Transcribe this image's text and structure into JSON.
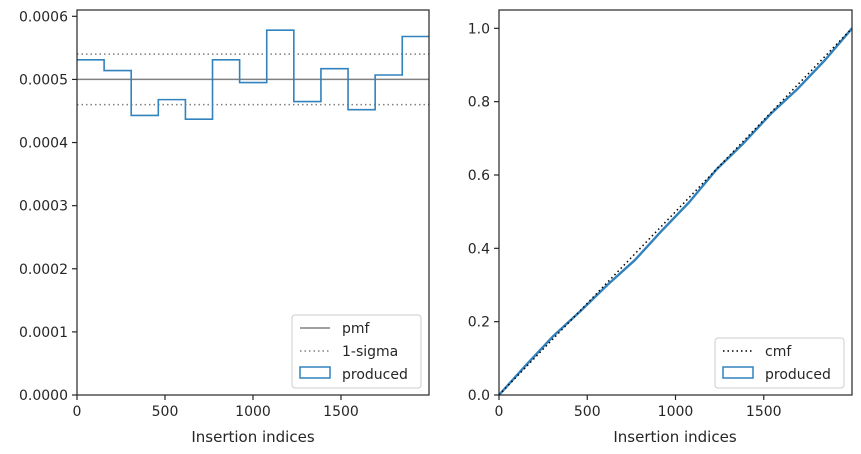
{
  "colors": {
    "produced": "#3182bd",
    "pmf": "#808080",
    "sigma": "#808080",
    "cmf": "#000000",
    "axes": "#262626"
  },
  "chart_data": [
    {
      "type": "line",
      "subtype": "step-histogram",
      "xlabel": "Insertion indices",
      "ylabel": "",
      "xlim": [
        0,
        2000
      ],
      "ylim": [
        0,
        0.00061
      ],
      "xticks": [
        0,
        500,
        1000,
        1500
      ],
      "xtick_labels": [
        "0",
        "500",
        "1000",
        "1500"
      ],
      "yticks": [
        0,
        0.0001,
        0.0002,
        0.0003,
        0.0004,
        0.0005,
        0.0006
      ],
      "ytick_labels": [
        "0.0000",
        "0.0001",
        "0.0002",
        "0.0003",
        "0.0004",
        "0.0005",
        "0.0006"
      ],
      "bin_edges": [
        0,
        154,
        308,
        462,
        616,
        770,
        924,
        1078,
        1232,
        1386,
        1540,
        1694,
        1848,
        2000
      ],
      "series": [
        {
          "name": "produced",
          "style": "step",
          "values": [
            0.000531,
            0.000514,
            0.000443,
            0.000468,
            0.000437,
            0.000531,
            0.000495,
            0.000578,
            0.000465,
            0.000517,
            0.000452,
            0.000507,
            0.000568
          ]
        },
        {
          "name": "pmf",
          "style": "hline",
          "value": 0.0005
        },
        {
          "name": "1-sigma",
          "style": "hline-dotted",
          "values": [
            0.00046,
            0.00054
          ]
        }
      ],
      "legend": {
        "placement": "lower-right",
        "entries": [
          "pmf",
          "1-sigma",
          "produced"
        ]
      }
    },
    {
      "type": "line",
      "subtype": "cumulative",
      "xlabel": "Insertion indices",
      "ylabel": "",
      "xlim": [
        0,
        2000
      ],
      "ylim": [
        0,
        1.05
      ],
      "xticks": [
        0,
        500,
        1000,
        1500
      ],
      "xtick_labels": [
        "0",
        "500",
        "1000",
        "1500"
      ],
      "yticks": [
        0,
        0.2,
        0.4,
        0.6,
        0.8,
        1.0
      ],
      "ytick_labels": [
        "0.0",
        "0.2",
        "0.4",
        "0.6",
        "0.8",
        "1.0"
      ],
      "series": [
        {
          "name": "cmf",
          "style": "dotted",
          "x": [
            0,
            2000
          ],
          "y": [
            0,
            1.0
          ]
        },
        {
          "name": "produced",
          "style": "solid",
          "x": [
            0,
            154,
            308,
            462,
            616,
            770,
            924,
            1078,
            1232,
            1386,
            1540,
            1694,
            1848,
            2000
          ],
          "y": [
            0,
            0.082,
            0.161,
            0.229,
            0.301,
            0.368,
            0.449,
            0.526,
            0.615,
            0.687,
            0.767,
            0.836,
            0.914,
            1.0
          ]
        }
      ],
      "legend": {
        "placement": "lower-right",
        "entries": [
          "cmf",
          "produced"
        ]
      }
    }
  ]
}
